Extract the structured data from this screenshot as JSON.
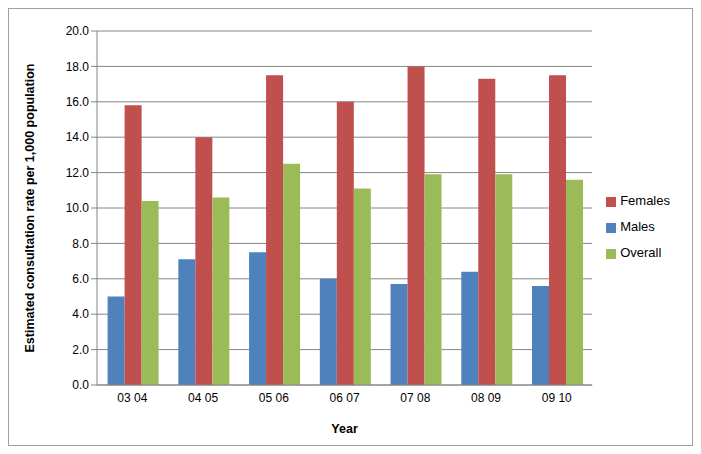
{
  "chart_data": {
    "type": "bar",
    "x_label": "Year",
    "y_label": "Estimated consultation rate per 1,000 population",
    "categories": [
      "03 04",
      "04 05",
      "05 06",
      "06 07",
      "07 08",
      "08 09",
      "09 10"
    ],
    "series": [
      {
        "name": "Males",
        "color": "#4f81bd",
        "values": [
          5.0,
          7.1,
          7.5,
          6.0,
          5.7,
          6.4,
          5.6
        ]
      },
      {
        "name": "Females",
        "color": "#c0504d",
        "values": [
          15.8,
          14.0,
          17.5,
          16.0,
          18.0,
          17.3,
          17.5
        ]
      },
      {
        "name": "Overall",
        "color": "#9bbb59",
        "values": [
          10.4,
          10.6,
          12.5,
          11.1,
          11.9,
          11.9,
          11.6
        ]
      }
    ],
    "ylim": [
      0,
      20
    ],
    "yticks": [
      {
        "value": 0,
        "label": "0.0"
      },
      {
        "value": 2,
        "label": "2.0"
      },
      {
        "value": 4,
        "label": "4.0"
      },
      {
        "value": 6,
        "label": "6.0"
      },
      {
        "value": 8,
        "label": "8.0"
      },
      {
        "value": 10,
        "label": "10.0"
      },
      {
        "value": 12,
        "label": "12.0"
      },
      {
        "value": 14,
        "label": "14.0"
      },
      {
        "value": 16,
        "label": "16.0"
      },
      {
        "value": 18,
        "label": "18.0"
      },
      {
        "value": 20,
        "label": "20.0"
      }
    ],
    "grid": true,
    "legend": "right"
  }
}
